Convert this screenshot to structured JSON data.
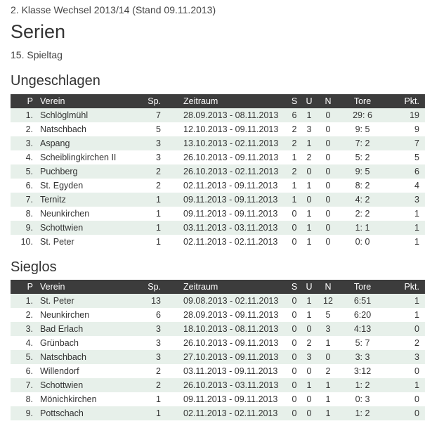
{
  "header": {
    "subtitle": "2. Klasse Wechsel 2013/14 (Stand 09.11.2013)",
    "title": "Serien",
    "round": "15. Spieltag"
  },
  "columns": {
    "p": "P",
    "club": "Verein",
    "games": "Sp.",
    "period": "Zeitraum",
    "s": "S",
    "u": "U",
    "n": "N",
    "goals": "Tore",
    "points": "Pkt."
  },
  "unbeaten": {
    "title": "Ungeschlagen",
    "rows": [
      {
        "p": "1.",
        "club": "Schlöglmühl",
        "games": "7",
        "period": "28.09.2013 - 08.11.2013",
        "s": "6",
        "u": "1",
        "n": "0",
        "goals": "29:  6",
        "points": "19"
      },
      {
        "p": "2.",
        "club": "Natschbach",
        "games": "5",
        "period": "12.10.2013 - 09.11.2013",
        "s": "2",
        "u": "3",
        "n": "0",
        "goals": "9:  5",
        "points": "9"
      },
      {
        "p": "3.",
        "club": "Aspang",
        "games": "3",
        "period": "13.10.2013 - 02.11.2013",
        "s": "2",
        "u": "1",
        "n": "0",
        "goals": "7:  2",
        "points": "7"
      },
      {
        "p": "4.",
        "club": "Scheiblingkirchen II",
        "games": "3",
        "period": "26.10.2013 - 09.11.2013",
        "s": "1",
        "u": "2",
        "n": "0",
        "goals": "5:  2",
        "points": "5"
      },
      {
        "p": "5.",
        "club": "Puchberg",
        "games": "2",
        "period": "26.10.2013 - 02.11.2013",
        "s": "2",
        "u": "0",
        "n": "0",
        "goals": "9:  5",
        "points": "6"
      },
      {
        "p": "6.",
        "club": "St. Egyden",
        "games": "2",
        "period": "02.11.2013 - 09.11.2013",
        "s": "1",
        "u": "1",
        "n": "0",
        "goals": "8:  2",
        "points": "4"
      },
      {
        "p": "7.",
        "club": "Ternitz",
        "games": "1",
        "period": "09.11.2013 - 09.11.2013",
        "s": "1",
        "u": "0",
        "n": "0",
        "goals": "4:  2",
        "points": "3"
      },
      {
        "p": "8.",
        "club": "Neunkirchen",
        "games": "1",
        "period": "09.11.2013 - 09.11.2013",
        "s": "0",
        "u": "1",
        "n": "0",
        "goals": "2:  2",
        "points": "1"
      },
      {
        "p": "9.",
        "club": "Schottwien",
        "games": "1",
        "period": "03.11.2013 - 03.11.2013",
        "s": "0",
        "u": "1",
        "n": "0",
        "goals": "1:  1",
        "points": "1"
      },
      {
        "p": "10.",
        "club": "St. Peter",
        "games": "1",
        "period": "02.11.2013 - 02.11.2013",
        "s": "0",
        "u": "1",
        "n": "0",
        "goals": "0:  0",
        "points": "1"
      }
    ]
  },
  "winless": {
    "title": "Sieglos",
    "rows": [
      {
        "p": "1.",
        "club": "St. Peter",
        "games": "13",
        "period": "09.08.2013 - 02.11.2013",
        "s": "0",
        "u": "1",
        "n": "12",
        "goals": "6:51",
        "points": "1"
      },
      {
        "p": "2.",
        "club": "Neunkirchen",
        "games": "6",
        "period": "28.09.2013 - 09.11.2013",
        "s": "0",
        "u": "1",
        "n": "5",
        "goals": "6:20",
        "points": "1"
      },
      {
        "p": "3.",
        "club": "Bad Erlach",
        "games": "3",
        "period": "18.10.2013 - 08.11.2013",
        "s": "0",
        "u": "0",
        "n": "3",
        "goals": "4:13",
        "points": "0"
      },
      {
        "p": "4.",
        "club": "Grünbach",
        "games": "3",
        "period": "26.10.2013 - 09.11.2013",
        "s": "0",
        "u": "2",
        "n": "1",
        "goals": "5:  7",
        "points": "2"
      },
      {
        "p": "5.",
        "club": "Natschbach",
        "games": "3",
        "period": "27.10.2013 - 09.11.2013",
        "s": "0",
        "u": "3",
        "n": "0",
        "goals": "3:  3",
        "points": "3"
      },
      {
        "p": "6.",
        "club": "Willendorf",
        "games": "2",
        "period": "03.11.2013 - 09.11.2013",
        "s": "0",
        "u": "0",
        "n": "2",
        "goals": "3:12",
        "points": "0"
      },
      {
        "p": "7.",
        "club": "Schottwien",
        "games": "2",
        "period": "26.10.2013 - 03.11.2013",
        "s": "0",
        "u": "1",
        "n": "1",
        "goals": "1:  2",
        "points": "1"
      },
      {
        "p": "8.",
        "club": "Mönichkirchen",
        "games": "1",
        "period": "09.11.2013 - 09.11.2013",
        "s": "0",
        "u": "0",
        "n": "1",
        "goals": "0:  3",
        "points": "0"
      },
      {
        "p": "9.",
        "club": "Pottschach",
        "games": "1",
        "period": "02.11.2013 - 02.11.2013",
        "s": "0",
        "u": "0",
        "n": "1",
        "goals": "1:  2",
        "points": "0"
      }
    ]
  },
  "colors": {
    "header_bg": "#3c3c3c",
    "row_alt_bg": "#e7f0ea"
  }
}
